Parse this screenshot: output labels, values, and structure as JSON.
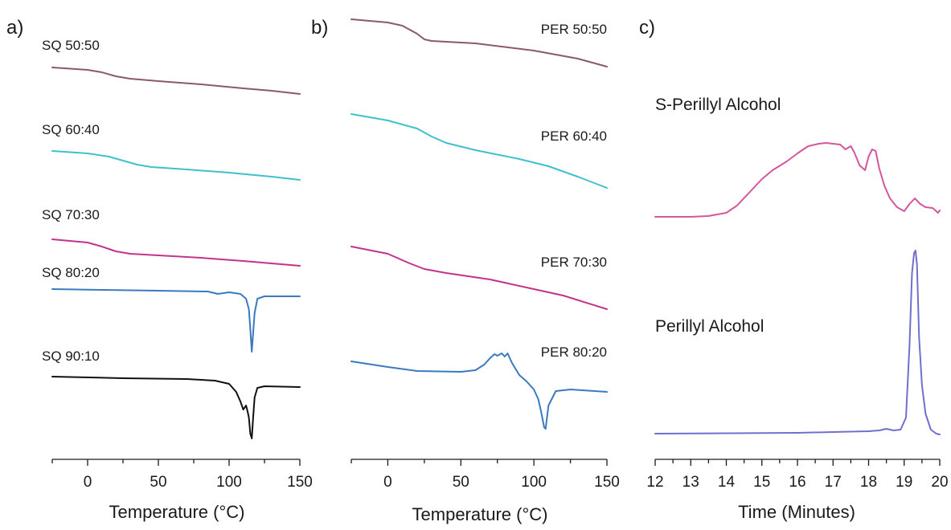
{
  "chart_data": [
    {
      "panel": "a)",
      "type": "line",
      "xlabel": "Temperature (°C)",
      "ylabel": "",
      "xlim": [
        -25,
        150
      ],
      "x_ticks": [
        0,
        50,
        100,
        150
      ],
      "grid": false,
      "series": [
        {
          "name": "SQ 50:50",
          "color": "#8c5a66",
          "x": [
            -25,
            0,
            10,
            20,
            30,
            50,
            80,
            110,
            130,
            150
          ],
          "y": [
            84,
            87,
            90,
            95,
            98,
            101,
            105,
            110,
            113,
            117
          ]
        },
        {
          "name": "SQ 60:40",
          "color": "#3fc0cc",
          "x": [
            -25,
            0,
            15,
            25,
            35,
            45,
            70,
            100,
            130,
            150
          ],
          "y": [
            188,
            191,
            195,
            200,
            205,
            208,
            211,
            215,
            220,
            224
          ]
        },
        {
          "name": "SQ 70:30",
          "color": "#c2348c",
          "x": [
            -25,
            0,
            10,
            20,
            30,
            50,
            80,
            110,
            130,
            150
          ],
          "y": [
            298,
            302,
            307,
            313,
            316,
            318,
            321,
            325,
            328,
            331
          ]
        },
        {
          "name": "SQ 80:20",
          "color": "#3a7ac0",
          "x": [
            -25,
            10,
            50,
            85,
            92,
            100,
            108,
            112,
            114,
            115,
            116,
            118,
            120,
            125,
            150
          ],
          "y": [
            360,
            361,
            362,
            363,
            366,
            364,
            366,
            372,
            385,
            410,
            438,
            390,
            372,
            369,
            369
          ]
        },
        {
          "name": "SQ 90:10",
          "color": "#111111",
          "x": [
            -25,
            25,
            70,
            90,
            100,
            105,
            108,
            110,
            112,
            113,
            114,
            115,
            116,
            117,
            118,
            120,
            125,
            150
          ],
          "y": [
            469,
            471,
            472,
            474,
            478,
            488,
            500,
            510,
            505,
            512,
            520,
            540,
            546,
            520,
            495,
            483,
            481,
            482
          ]
        }
      ]
    },
    {
      "panel": "b)",
      "type": "line",
      "xlabel": "Temperature (°C)",
      "ylabel": "",
      "xlim": [
        -25,
        150
      ],
      "x_ticks": [
        0,
        50,
        100,
        150
      ],
      "grid": false,
      "series": [
        {
          "name": "PER 50:50",
          "color": "#8c5a66",
          "x": [
            -25,
            0,
            10,
            20,
            25,
            30,
            60,
            100,
            130,
            150
          ],
          "y": [
            24,
            28,
            32,
            42,
            49,
            51,
            54,
            63,
            73,
            83
          ]
        },
        {
          "name": "PER 60:40",
          "color": "#3fc0cc",
          "x": [
            -25,
            0,
            20,
            30,
            40,
            60,
            90,
            110,
            130,
            150
          ],
          "y": [
            142,
            150,
            160,
            170,
            178,
            187,
            198,
            207,
            220,
            234
          ]
        },
        {
          "name": "PER 70:30",
          "color": "#c2348c",
          "x": [
            -25,
            0,
            15,
            25,
            40,
            70,
            100,
            120,
            150
          ],
          "y": [
            307,
            316,
            328,
            335,
            340,
            348,
            360,
            368,
            385
          ]
        },
        {
          "name": "PER 80:20",
          "color": "#3a7ac0",
          "x": [
            -25,
            0,
            20,
            50,
            60,
            66,
            70,
            73,
            75,
            78,
            80,
            82,
            85,
            90,
            95,
            100,
            103,
            105,
            107,
            108,
            110,
            115,
            125,
            150
          ],
          "y": [
            450,
            457,
            462,
            463,
            461,
            454,
            446,
            441,
            443,
            440,
            444,
            440,
            452,
            467,
            475,
            485,
            497,
            513,
            532,
            534,
            505,
            487,
            485,
            488
          ]
        }
      ]
    },
    {
      "panel": "c)",
      "type": "line",
      "xlabel": "Time (Minutes)",
      "ylabel": "",
      "xlim": [
        12,
        20
      ],
      "x_ticks": [
        12,
        13,
        14,
        15,
        16,
        17,
        18,
        19,
        20
      ],
      "grid": false,
      "series": [
        {
          "name": "S-Perillyl Alcohol",
          "color": "#d4569e",
          "x": [
            12,
            13,
            13.5,
            14,
            14.3,
            14.6,
            15,
            15.3,
            15.7,
            16,
            16.3,
            16.6,
            16.8,
            17,
            17.2,
            17.35,
            17.5,
            17.6,
            17.75,
            17.9,
            18,
            18.1,
            18.2,
            18.3,
            18.45,
            18.6,
            18.8,
            19,
            19.15,
            19.3,
            19.45,
            19.6,
            19.8,
            19.95,
            20
          ],
          "y": [
            270,
            270,
            269,
            265,
            256,
            242,
            223,
            212,
            201,
            191,
            182,
            179,
            178,
            179,
            180,
            186,
            182,
            190,
            206,
            212,
            195,
            186,
            188,
            210,
            232,
            247,
            258,
            263,
            254,
            247,
            254,
            258,
            259,
            265,
            262
          ]
        },
        {
          "name": "Perillyl Alcohol",
          "color": "#7070cc",
          "x": [
            12,
            16,
            17,
            18,
            18.3,
            18.5,
            18.7,
            18.9,
            19.05,
            19.15,
            19.22,
            19.28,
            19.32,
            19.36,
            19.42,
            19.5,
            19.6,
            19.75,
            19.9,
            20
          ],
          "y": [
            540,
            539,
            538,
            537,
            536,
            534,
            536,
            535,
            520,
            430,
            340,
            315,
            312,
            330,
            420,
            480,
            515,
            535,
            540,
            541
          ]
        }
      ]
    }
  ]
}
